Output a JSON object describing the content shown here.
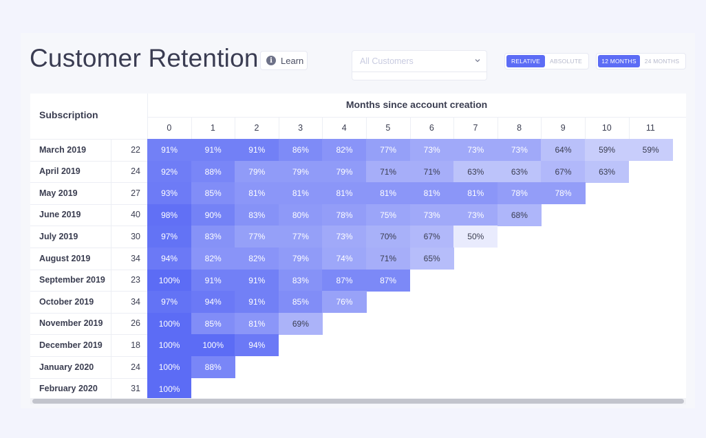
{
  "title": "Customer Retention",
  "learn_label": "Learn",
  "customer_select": {
    "placeholder": "All Customers"
  },
  "mode_toggle": {
    "options": [
      "RELATIVE",
      "ABSOLUTE"
    ],
    "active": "RELATIVE"
  },
  "range_toggle": {
    "options": [
      "12 MONTHS",
      "24 MONTHS"
    ],
    "active": "12 MONTHS"
  },
  "accent_color": "#5c6cf5",
  "table": {
    "subscription_header": "Subscription",
    "months_header": "Months since account creation",
    "month_columns": [
      "0",
      "1",
      "2",
      "3",
      "4",
      "5",
      "6",
      "7",
      "8",
      "9",
      "10",
      "11"
    ],
    "rows": [
      {
        "label": "March 2019",
        "count": "22",
        "values": [
          "91%",
          "91%",
          "91%",
          "86%",
          "82%",
          "77%",
          "73%",
          "73%",
          "73%",
          "64%",
          "59%",
          "59%"
        ]
      },
      {
        "label": "April 2019",
        "count": "24",
        "values": [
          "92%",
          "88%",
          "79%",
          "79%",
          "79%",
          "71%",
          "71%",
          "63%",
          "63%",
          "67%",
          "63%"
        ]
      },
      {
        "label": "May 2019",
        "count": "27",
        "values": [
          "93%",
          "85%",
          "81%",
          "81%",
          "81%",
          "81%",
          "81%",
          "81%",
          "78%",
          "78%"
        ]
      },
      {
        "label": "June 2019",
        "count": "40",
        "values": [
          "98%",
          "90%",
          "83%",
          "80%",
          "78%",
          "75%",
          "73%",
          "73%",
          "68%"
        ]
      },
      {
        "label": "July 2019",
        "count": "30",
        "values": [
          "97%",
          "83%",
          "77%",
          "77%",
          "73%",
          "70%",
          "67%",
          "50%"
        ]
      },
      {
        "label": "August 2019",
        "count": "34",
        "values": [
          "94%",
          "82%",
          "82%",
          "79%",
          "74%",
          "71%",
          "65%"
        ]
      },
      {
        "label": "September 2019",
        "count": "23",
        "values": [
          "100%",
          "91%",
          "91%",
          "83%",
          "87%",
          "87%"
        ]
      },
      {
        "label": "October 2019",
        "count": "34",
        "values": [
          "97%",
          "94%",
          "91%",
          "85%",
          "76%"
        ]
      },
      {
        "label": "November 2019",
        "count": "26",
        "values": [
          "100%",
          "85%",
          "81%",
          "69%"
        ]
      },
      {
        "label": "December 2019",
        "count": "18",
        "values": [
          "100%",
          "100%",
          "94%"
        ]
      },
      {
        "label": "January 2020",
        "count": "24",
        "values": [
          "100%",
          "88%"
        ]
      },
      {
        "label": "February 2020",
        "count": "31",
        "values": [
          "100%"
        ]
      }
    ]
  }
}
